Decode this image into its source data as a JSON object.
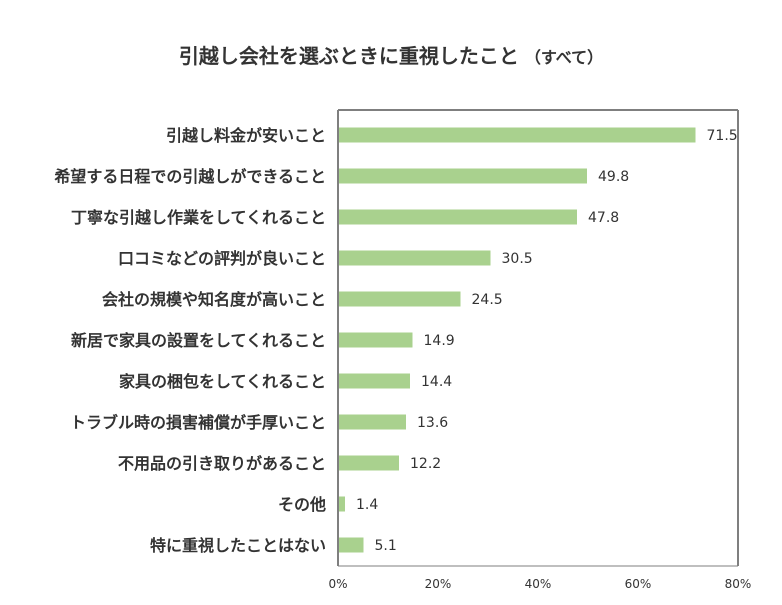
{
  "chart_data": {
    "type": "bar",
    "orientation": "horizontal",
    "title": "引越し会社を選ぶときに重視したこと",
    "subtitle": "（すべて）",
    "categories": [
      "引越し料金が安いこと",
      "希望する日程での引越しができること",
      "丁寧な引越し作業をしてくれること",
      "口コミなどの評判が良いこと",
      "会社の規模や知名度が高いこと",
      "新居で家具の設置をしてくれること",
      "家具の梱包をしてくれること",
      "トラブル時の損害補償が手厚いこと",
      "不用品の引き取りがあること",
      "その他",
      "特に重視したことはない"
    ],
    "values": [
      71.5,
      49.8,
      47.8,
      30.5,
      24.5,
      14.9,
      14.4,
      13.6,
      12.2,
      1.4,
      5.1
    ],
    "xlim": [
      0,
      80
    ],
    "ticks": [
      "0%",
      "20%",
      "40%",
      "60%",
      "80%"
    ],
    "tick_values": [
      0,
      20,
      40,
      60,
      80
    ],
    "grid": false,
    "bar_color": "#a9d18e",
    "axis_color": "#7f7f7f"
  }
}
